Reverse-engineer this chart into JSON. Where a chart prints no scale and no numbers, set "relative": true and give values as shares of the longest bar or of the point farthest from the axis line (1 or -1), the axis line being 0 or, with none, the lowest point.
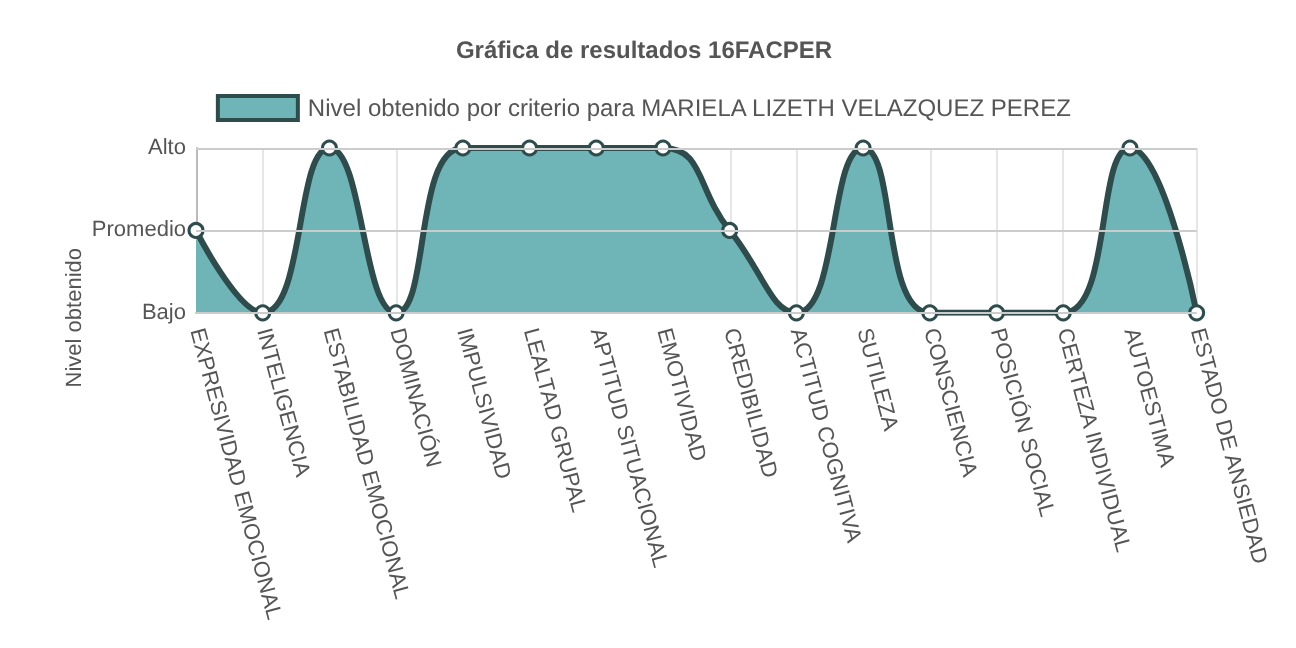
{
  "chart_data": {
    "type": "area",
    "title": "Gráfica de resultados 16FACPER",
    "ylabel": "Nivel obtenido",
    "relative": true,
    "categories": [
      "EXPRESIVIDAD EMOCIONAL",
      "INTELIGENCIA",
      "ESTABILIDAD EMOCIONAL",
      "DOMINACIÓN",
      "IMPULSIVIDAD",
      "LEALTAD GRUPAL",
      "APTITUD SITUACIONAL",
      "EMOTIVIDAD",
      "CREDIBILIDAD",
      "ACTITUD COGNITIVA",
      "SUTILEZA",
      "CONSCIENCIA",
      "POSICIÓN SOCIAL",
      "CERTEZA INDIVIDUAL",
      "AUTOESTIMA",
      "ESTADO DE ANSIEDAD"
    ],
    "series": [
      {
        "name": "Nivel obtenido por criterio para MARIELA LIZETH VELAZQUEZ PEREZ",
        "color": "#6fb5b8",
        "values": [
          0.5,
          0,
          1,
          0,
          1,
          1,
          1,
          1,
          0.5,
          0,
          1,
          0,
          0,
          0,
          1,
          0
        ]
      }
    ],
    "ref_lines": [
      {
        "axis": "y",
        "value": 0,
        "label": "Bajo"
      },
      {
        "axis": "y",
        "value": 0.5,
        "label": "Promedio"
      },
      {
        "axis": "y",
        "value": 1,
        "label": "Alto"
      }
    ],
    "grid": "x",
    "legend": "top",
    "marker": "circle",
    "line_style": "solid"
  }
}
